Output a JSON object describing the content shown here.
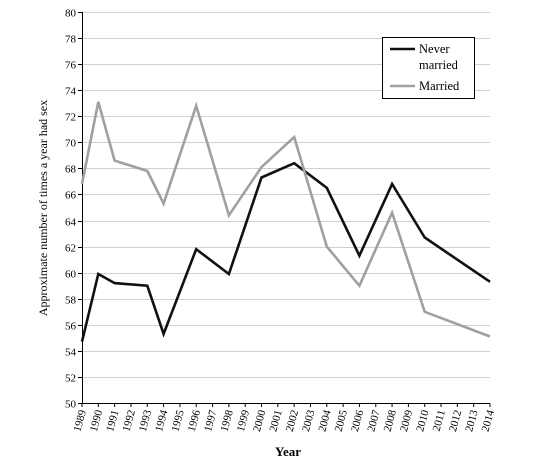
{
  "chart_data": {
    "type": "line",
    "xlabel": "Year",
    "ylabel": "Approximate number of times a year had sex",
    "ylim": [
      50,
      80
    ],
    "ytick_step": 2,
    "grid": "horizontal",
    "legend_position": "top-right",
    "categories": [
      "1989",
      "1990",
      "1991",
      "1992",
      "1993",
      "1994",
      "1995",
      "1996",
      "1997",
      "1998",
      "1999",
      "2000",
      "2001",
      "2002",
      "2003",
      "2004",
      "2005",
      "2006",
      "2007",
      "2008",
      "2009",
      "2010",
      "2011",
      "2012",
      "2013",
      "2014"
    ],
    "series": [
      {
        "name_lines": [
          "Never",
          "married"
        ],
        "color": "#111111",
        "points": [
          {
            "x": 1989,
            "y": 54.7
          },
          {
            "x": 1990,
            "y": 59.9
          },
          {
            "x": 1991,
            "y": 59.2
          },
          {
            "x": 1993,
            "y": 59.0
          },
          {
            "x": 1994,
            "y": 55.3
          },
          {
            "x": 1996,
            "y": 61.8
          },
          {
            "x": 1998,
            "y": 59.9
          },
          {
            "x": 2000,
            "y": 67.3
          },
          {
            "x": 2002,
            "y": 68.4
          },
          {
            "x": 2004,
            "y": 66.5
          },
          {
            "x": 2006,
            "y": 61.3
          },
          {
            "x": 2008,
            "y": 66.8
          },
          {
            "x": 2010,
            "y": 62.7
          },
          {
            "x": 2014,
            "y": 59.3
          }
        ]
      },
      {
        "name_lines": [
          "Married"
        ],
        "color": "#a0a0a0",
        "points": [
          {
            "x": 1989,
            "y": 66.8
          },
          {
            "x": 1990,
            "y": 73.1
          },
          {
            "x": 1991,
            "y": 68.6
          },
          {
            "x": 1993,
            "y": 67.8
          },
          {
            "x": 1994,
            "y": 65.3
          },
          {
            "x": 1996,
            "y": 72.8
          },
          {
            "x": 1998,
            "y": 64.4
          },
          {
            "x": 2000,
            "y": 68.1
          },
          {
            "x": 2002,
            "y": 70.4
          },
          {
            "x": 2004,
            "y": 62.0
          },
          {
            "x": 2006,
            "y": 59.0
          },
          {
            "x": 2008,
            "y": 64.6
          },
          {
            "x": 2010,
            "y": 57.0
          },
          {
            "x": 2014,
            "y": 55.1
          }
        ]
      }
    ]
  }
}
